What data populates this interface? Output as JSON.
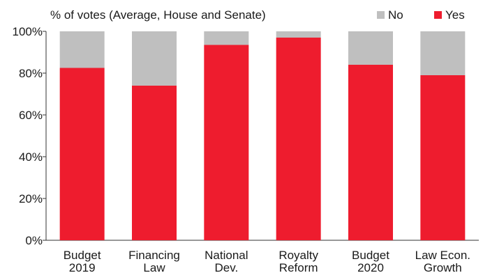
{
  "chart_data": {
    "type": "bar",
    "stacked": true,
    "title": "% of votes (Average, House and Senate)",
    "categories": [
      [
        "Budget",
        "2019"
      ],
      [
        "Financing",
        "Law"
      ],
      [
        "National",
        "Dev."
      ],
      [
        "Royalty",
        "Reform"
      ],
      [
        "Budget",
        "2020"
      ],
      [
        "Law Econ.",
        "Growth"
      ]
    ],
    "series": [
      {
        "name": "Yes",
        "color": "#ee1c2e",
        "values": [
          82.5,
          74,
          93.5,
          97,
          84,
          79
        ]
      },
      {
        "name": "No",
        "color": "#bfbfbf",
        "values": [
          17.5,
          26,
          6.5,
          3,
          16,
          21
        ]
      }
    ],
    "ylim": [
      0,
      100
    ],
    "yticks": [
      "0%",
      "20%",
      "40%",
      "60%",
      "80%",
      "100%"
    ],
    "grid": false,
    "legend_position": "top-right",
    "legend_order": [
      "No",
      "Yes"
    ]
  }
}
